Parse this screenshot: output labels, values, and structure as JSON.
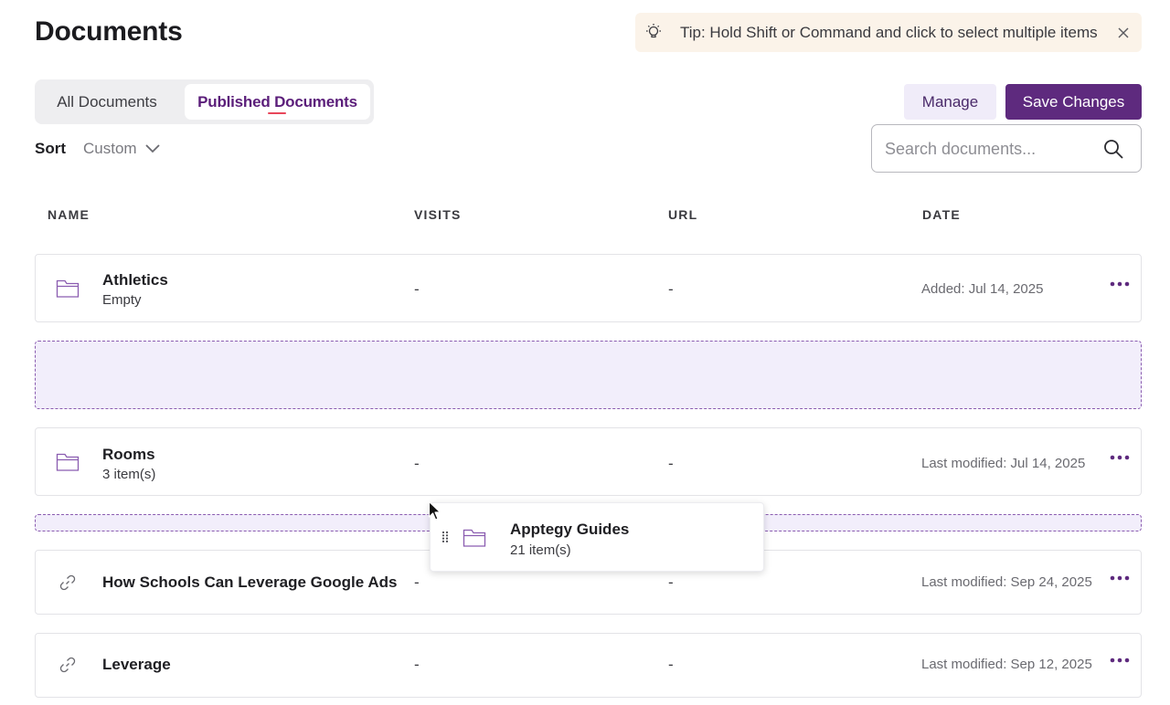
{
  "page": {
    "title": "Documents"
  },
  "tip": {
    "text": "Tip: Hold Shift or Command and click to select multiple items"
  },
  "tabs": [
    {
      "label": "All Documents",
      "active": false
    },
    {
      "label": "Published Documents",
      "active": true
    }
  ],
  "actions": {
    "manage_label": "Manage",
    "save_label": "Save Changes"
  },
  "sort": {
    "label": "Sort",
    "value": "Custom"
  },
  "search": {
    "placeholder": "Search documents..."
  },
  "table": {
    "headers": {
      "name": "NAME",
      "visits": "VISITS",
      "url": "URL",
      "date": "DATE"
    },
    "rows": [
      {
        "type": "folder",
        "name": "Athletics",
        "sub": "Empty",
        "visits": "-",
        "url": "-",
        "date": "Added: Jul 14, 2025"
      },
      {
        "type": "folder",
        "name": "Rooms",
        "sub": "3 item(s)",
        "visits": "-",
        "url": "-",
        "date": "Last modified: Jul 14, 2025"
      },
      {
        "type": "link",
        "name": "How Schools Can Leverage Google Ads",
        "sub": "",
        "visits": "-",
        "url": "-",
        "date": "Last modified: Sep 24, 2025"
      },
      {
        "type": "link",
        "name": "Leverage",
        "sub": "",
        "visits": "-",
        "url": "-",
        "date": "Last modified: Sep 12, 2025"
      }
    ]
  },
  "dragging": {
    "name": "Apptegy Guides",
    "sub": "21 item(s)"
  },
  "colors": {
    "accent": "#5e2a7e",
    "tip_bg": "#fbf3e9",
    "drop_zone_bg": "#f2eefb",
    "tab_underline": "#e8465a"
  },
  "icons": {
    "tip": "lightbulb-icon",
    "close": "close-icon",
    "sort": "chevron-down-icon",
    "search": "search-icon",
    "folder": "folder-icon",
    "link": "link-icon",
    "more": "more-horizontal-icon",
    "grip": "drag-handle-icon",
    "cursor": "cursor-arrow-icon"
  }
}
